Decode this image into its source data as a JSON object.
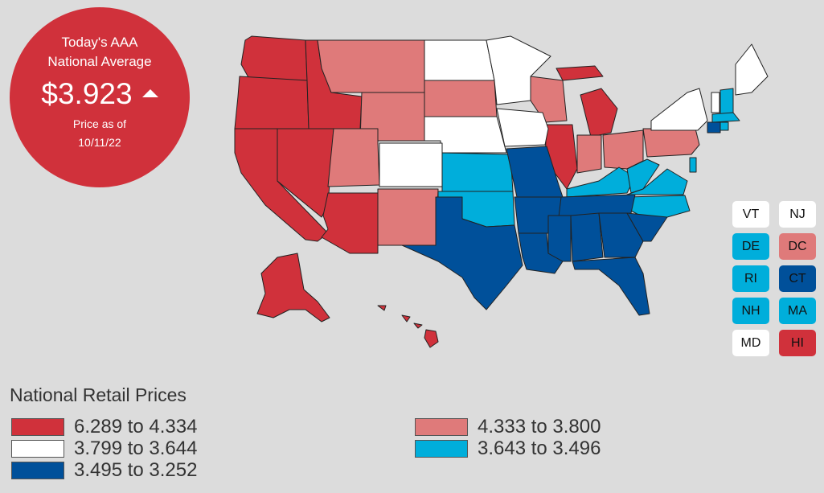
{
  "badge": {
    "line1": "Today's AAA",
    "line2": "National Average",
    "price": "$3.923",
    "trend": "up",
    "price_as_of_label": "Price as of",
    "date": "10/11/22"
  },
  "colors": {
    "band1": "#d0313b",
    "band2": "#df7a7a",
    "band3": "#ffffff",
    "band4": "#00aedb",
    "band5": "#00509a"
  },
  "small_states": [
    {
      "label": "VT",
      "band": "band3"
    },
    {
      "label": "NJ",
      "band": "band3"
    },
    {
      "label": "DE",
      "band": "band4"
    },
    {
      "label": "DC",
      "band": "band2"
    },
    {
      "label": "RI",
      "band": "band4"
    },
    {
      "label": "CT",
      "band": "band5"
    },
    {
      "label": "NH",
      "band": "band4"
    },
    {
      "label": "MA",
      "band": "band4"
    },
    {
      "label": "MD",
      "band": "band3"
    },
    {
      "label": "HI",
      "band": "band1"
    }
  ],
  "legend": {
    "title": "National Retail Prices",
    "items": [
      {
        "label": "6.289 to 4.334",
        "band": "band1"
      },
      {
        "label": "3.799 to 3.644",
        "band": "band3"
      },
      {
        "label": "3.495 to 3.252",
        "band": "band5"
      },
      {
        "label": "4.333 to 3.800",
        "band": "band2"
      },
      {
        "label": "3.643 to 3.496",
        "band": "band4"
      }
    ]
  }
}
